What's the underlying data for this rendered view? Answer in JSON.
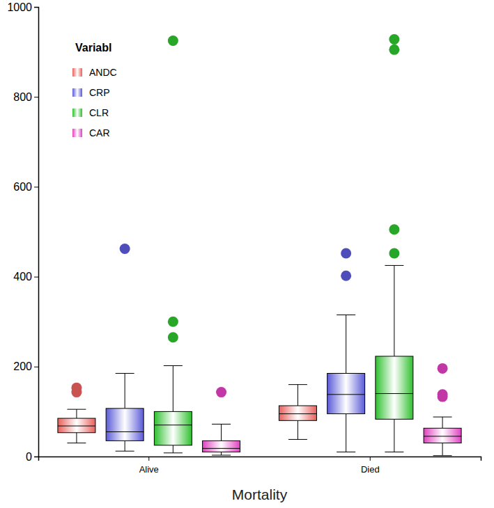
{
  "chart_data": {
    "type": "box",
    "x_label": "Mortality",
    "legend_title": "Variabl",
    "legend": "top-left",
    "categories": [
      "Alive",
      "Died"
    ],
    "ylim": [
      0,
      1000
    ],
    "yticks": [
      0,
      200,
      400,
      600,
      800,
      1000
    ],
    "series": [
      {
        "name": "ANDC",
        "color": "#e8605c",
        "values": [
          {
            "min": 30,
            "q1": 53,
            "median": 68,
            "q3": 85,
            "max": 105,
            "outliers": [
              153,
              143
            ]
          },
          {
            "min": 38,
            "q1": 80,
            "median": 95,
            "q3": 113,
            "max": 160,
            "outliers": []
          }
        ]
      },
      {
        "name": "CRP",
        "color": "#5a5ad8",
        "values": [
          {
            "min": 12,
            "q1": 35,
            "median": 55,
            "q3": 107,
            "max": 185,
            "outliers": [
              462
            ]
          },
          {
            "min": 10,
            "q1": 95,
            "median": 138,
            "q3": 185,
            "max": 315,
            "outliers": [
              452,
              402
            ]
          }
        ]
      },
      {
        "name": "CLR",
        "color": "#2ec02e",
        "values": [
          {
            "min": 8,
            "q1": 25,
            "median": 70,
            "q3": 100,
            "max": 202,
            "outliers": [
              925,
              300,
              265
            ]
          },
          {
            "min": 10,
            "q1": 83,
            "median": 140,
            "q3": 223,
            "max": 425,
            "outliers": [
              928,
              905,
              505,
              452
            ]
          }
        ]
      },
      {
        "name": "CAR",
        "color": "#e040c0",
        "values": [
          {
            "min": 3,
            "q1": 10,
            "median": 18,
            "q3": 35,
            "max": 72,
            "outliers": [
              143
            ]
          },
          {
            "min": 2,
            "q1": 30,
            "median": 45,
            "q3": 63,
            "max": 88,
            "outliers": [
              196,
              138,
              133
            ]
          }
        ]
      }
    ]
  }
}
